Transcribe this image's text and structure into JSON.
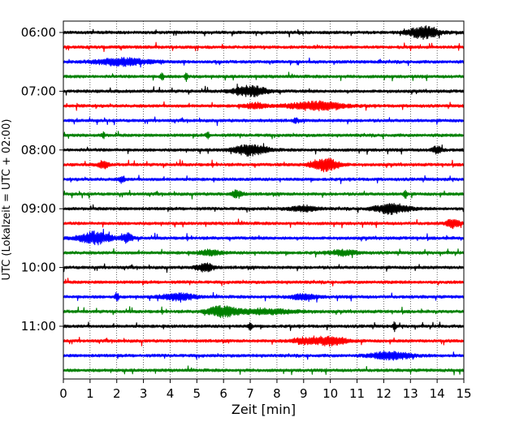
{
  "chart_data": {
    "type": "line",
    "xlabel": "Zeit  [min]",
    "ylabel": "UTC (Lokalzeit = UTC + 02:00)",
    "xlim": [
      0,
      15
    ],
    "x_ticks": [
      "0",
      "1",
      "2",
      "3",
      "4",
      "5",
      "6",
      "7",
      "8",
      "9",
      "10",
      "11",
      "12",
      "13",
      "14",
      "15"
    ],
    "y_ticks": [
      {
        "label": "06:00",
        "trace": 0
      },
      {
        "label": "07:00",
        "trace": 4
      },
      {
        "label": "08:00",
        "trace": 8
      },
      {
        "label": "09:00",
        "trace": 12
      },
      {
        "label": "10:00",
        "trace": 16
      },
      {
        "label": "11:00",
        "trace": 20
      }
    ],
    "trace_interval_min": 15,
    "grid_x": true,
    "colors": [
      "#000000",
      "#ff0000",
      "#0000ff",
      "#008000"
    ],
    "traces": [
      {
        "start": "06:00",
        "color": "#000000",
        "bursts": [
          [
            13.5,
            0.55,
            7
          ]
        ]
      },
      {
        "start": "06:15",
        "color": "#ff0000",
        "bursts": []
      },
      {
        "start": "06:30",
        "color": "#0000ff",
        "bursts": [
          [
            2.2,
            1.0,
            4
          ]
        ]
      },
      {
        "start": "06:45",
        "color": "#008000",
        "bursts": [
          [
            3.7,
            0.05,
            5
          ],
          [
            4.6,
            0.05,
            5
          ]
        ]
      },
      {
        "start": "07:00",
        "color": "#000000",
        "bursts": [
          [
            7.0,
            0.6,
            6
          ]
        ]
      },
      {
        "start": "07:15",
        "color": "#ff0000",
        "bursts": [
          [
            9.5,
            1.0,
            5
          ],
          [
            7.2,
            0.4,
            3
          ]
        ]
      },
      {
        "start": "07:30",
        "color": "#0000ff",
        "bursts": [
          [
            8.7,
            0.05,
            4
          ]
        ]
      },
      {
        "start": "07:45",
        "color": "#008000",
        "bursts": [
          [
            1.5,
            0.05,
            4
          ],
          [
            5.4,
            0.05,
            4
          ]
        ]
      },
      {
        "start": "08:00",
        "color": "#000000",
        "bursts": [
          [
            7.0,
            0.6,
            6
          ],
          [
            14.0,
            0.2,
            4
          ]
        ]
      },
      {
        "start": "08:15",
        "color": "#ff0000",
        "bursts": [
          [
            9.8,
            0.5,
            8
          ],
          [
            1.5,
            0.2,
            4
          ]
        ]
      },
      {
        "start": "08:30",
        "color": "#0000ff",
        "bursts": [
          [
            2.2,
            0.1,
            4
          ]
        ]
      },
      {
        "start": "08:45",
        "color": "#008000",
        "bursts": [
          [
            6.5,
            0.2,
            4
          ],
          [
            12.8,
            0.05,
            6
          ]
        ]
      },
      {
        "start": "09:00",
        "color": "#000000",
        "bursts": [
          [
            12.3,
            0.6,
            6
          ],
          [
            9.0,
            0.5,
            3
          ]
        ]
      },
      {
        "start": "09:15",
        "color": "#ff0000",
        "bursts": [
          [
            14.6,
            0.25,
            5
          ]
        ]
      },
      {
        "start": "09:30",
        "color": "#0000ff",
        "bursts": [
          [
            1.2,
            0.6,
            7
          ],
          [
            2.4,
            0.2,
            5
          ]
        ]
      },
      {
        "start": "09:45",
        "color": "#008000",
        "bursts": [
          [
            5.5,
            0.4,
            3
          ],
          [
            10.5,
            0.5,
            3
          ]
        ]
      },
      {
        "start": "10:00",
        "color": "#000000",
        "bursts": [
          [
            5.3,
            0.3,
            5
          ]
        ]
      },
      {
        "start": "10:15",
        "color": "#ff0000",
        "bursts": []
      },
      {
        "start": "10:30",
        "color": "#0000ff",
        "bursts": [
          [
            2.0,
            0.05,
            6
          ],
          [
            4.3,
            0.6,
            4
          ],
          [
            9.0,
            0.5,
            3
          ]
        ]
      },
      {
        "start": "10:45",
        "color": "#008000",
        "bursts": [
          [
            5.9,
            0.5,
            6
          ],
          [
            7.5,
            1.2,
            3
          ]
        ]
      },
      {
        "start": "11:00",
        "color": "#000000",
        "bursts": [
          [
            7.0,
            0.05,
            5
          ],
          [
            12.4,
            0.05,
            5
          ]
        ]
      },
      {
        "start": "11:15",
        "color": "#ff0000",
        "bursts": [
          [
            10.0,
            0.6,
            5
          ],
          [
            9.0,
            0.5,
            3
          ]
        ]
      },
      {
        "start": "11:30",
        "color": "#0000ff",
        "bursts": [
          [
            12.3,
            0.7,
            5
          ]
        ]
      },
      {
        "start": "11:45",
        "color": "#008000",
        "bursts": []
      }
    ]
  }
}
